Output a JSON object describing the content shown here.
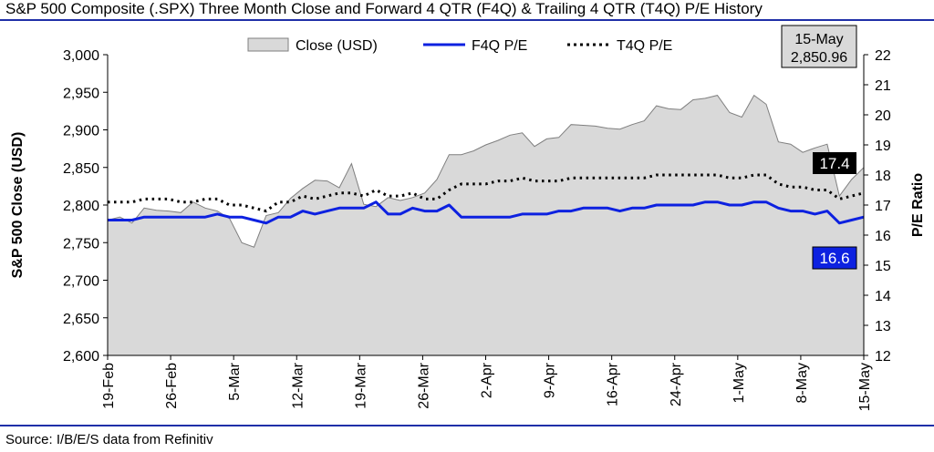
{
  "title": "S&P 500 Composite (.SPX) Three Month Close and Forward 4 QTR (F4Q) & Trailing 4 QTR (T4Q) P/E History",
  "source": "Source: I/B/E/S data from Refinitiv",
  "chart_data": {
    "type": "line",
    "ylabel": "S&P 500 Close (USD)",
    "y2label": "P/E Ratio",
    "ylim": [
      2600,
      3000
    ],
    "y2lim": [
      12,
      22
    ],
    "yticks": [
      "2,600",
      "2,650",
      "2,700",
      "2,750",
      "2,800",
      "2,850",
      "2,900",
      "2,950",
      "3,000"
    ],
    "y2ticks": [
      "12",
      "13",
      "14",
      "15",
      "16",
      "17",
      "18",
      "19",
      "20",
      "21",
      "22"
    ],
    "xticks": [
      "19-Feb",
      "26-Feb",
      "5-Mar",
      "12-Mar",
      "19-Mar",
      "26-Mar",
      "2-Apr",
      "9-Apr",
      "16-Apr",
      "24-Apr",
      "1-May",
      "8-May",
      "15-May"
    ],
    "legend": {
      "close": "Close (USD)",
      "f4q": "F4Q P/E",
      "t4q": "T4Q P/E"
    },
    "callout": {
      "date": "15-May",
      "value": "2,850.96"
    },
    "t4q_label": "17.4",
    "f4q_label": "16.6",
    "colors": {
      "area": "#d9d9d9",
      "area_stroke": "#7f7f7f",
      "f4q": "#0d21e0",
      "t4q": "#000000",
      "f4q_label_bg": "#0d21e0",
      "t4q_label_bg": "#000000"
    },
    "series": [
      {
        "name": "Close (USD)",
        "values": [
          2780,
          2784,
          2776,
          2796,
          2793,
          2792,
          2790,
          2804,
          2796,
          2792,
          2782,
          2750,
          2744,
          2786,
          2790,
          2809,
          2822,
          2833,
          2832,
          2823,
          2855,
          2801,
          2798,
          2810,
          2806,
          2810,
          2816,
          2834,
          2867,
          2867,
          2872,
          2880,
          2886,
          2893,
          2896,
          2878,
          2888,
          2890,
          2907,
          2906,
          2905,
          2902,
          2901,
          2907,
          2912,
          2932,
          2928,
          2927,
          2940,
          2942,
          2946,
          2923,
          2917,
          2946,
          2934,
          2884,
          2881,
          2870,
          2876,
          2881,
          2812,
          2834,
          2850
        ]
      },
      {
        "name": "F4Q P/E",
        "values": [
          16.5,
          16.5,
          16.5,
          16.6,
          16.6,
          16.6,
          16.6,
          16.6,
          16.6,
          16.7,
          16.6,
          16.6,
          16.5,
          16.4,
          16.6,
          16.6,
          16.8,
          16.7,
          16.8,
          16.9,
          16.9,
          16.9,
          17.1,
          16.7,
          16.7,
          16.9,
          16.8,
          16.8,
          17.0,
          16.6,
          16.6,
          16.6,
          16.6,
          16.6,
          16.7,
          16.7,
          16.7,
          16.8,
          16.8,
          16.9,
          16.9,
          16.9,
          16.8,
          16.9,
          16.9,
          17.0,
          17.0,
          17.0,
          17.0,
          17.1,
          17.1,
          17.0,
          17.0,
          17.1,
          17.1,
          16.9,
          16.8,
          16.8,
          16.7,
          16.8,
          16.4,
          16.5,
          16.6
        ]
      },
      {
        "name": "T4Q P/E",
        "values": [
          17.1,
          17.1,
          17.1,
          17.2,
          17.2,
          17.2,
          17.1,
          17.1,
          17.2,
          17.2,
          17.0,
          17.0,
          16.9,
          16.8,
          17.1,
          17.1,
          17.3,
          17.2,
          17.3,
          17.4,
          17.4,
          17.3,
          17.5,
          17.3,
          17.3,
          17.4,
          17.2,
          17.2,
          17.5,
          17.7,
          17.7,
          17.7,
          17.8,
          17.8,
          17.9,
          17.8,
          17.8,
          17.8,
          17.9,
          17.9,
          17.9,
          17.9,
          17.9,
          17.9,
          17.9,
          18.0,
          18.0,
          18.0,
          18.0,
          18.0,
          18.0,
          17.9,
          17.9,
          18.0,
          18.0,
          17.7,
          17.6,
          17.6,
          17.5,
          17.5,
          17.2,
          17.3,
          17.4
        ]
      }
    ]
  }
}
